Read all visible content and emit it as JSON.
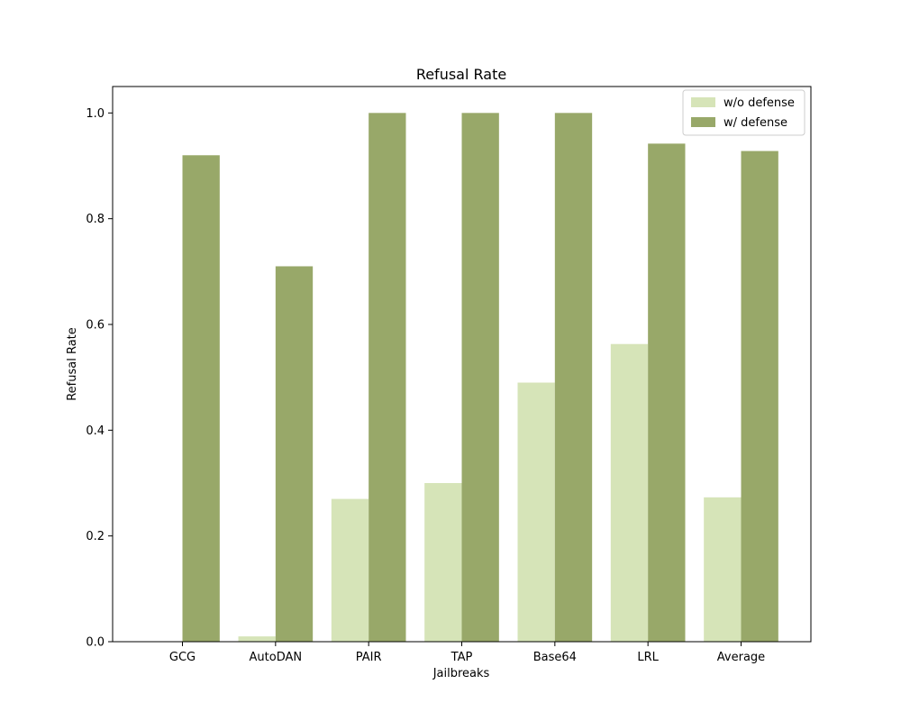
{
  "chart_data": {
    "type": "bar",
    "title": "Refusal Rate",
    "xlabel": "Jailbreaks",
    "ylabel": "Refusal Rate",
    "categories": [
      "GCG",
      "AutoDAN",
      "PAIR",
      "TAP",
      "Base64",
      "LRL",
      "Average"
    ],
    "series": [
      {
        "name": "w/o defense",
        "color": "#d6e4b8",
        "values": [
          0.0,
          0.01,
          0.27,
          0.3,
          0.49,
          0.563,
          0.273
        ]
      },
      {
        "name": "w/ defense",
        "color": "#98a869",
        "values": [
          0.92,
          0.71,
          1.0,
          1.0,
          1.0,
          0.942,
          0.928
        ]
      }
    ],
    "ylim": [
      0,
      1.05
    ],
    "yticks": [
      "0.0",
      "0.2",
      "0.4",
      "0.6",
      "0.8",
      "1.0"
    ],
    "legend_position": "top-right",
    "grid": false
  }
}
